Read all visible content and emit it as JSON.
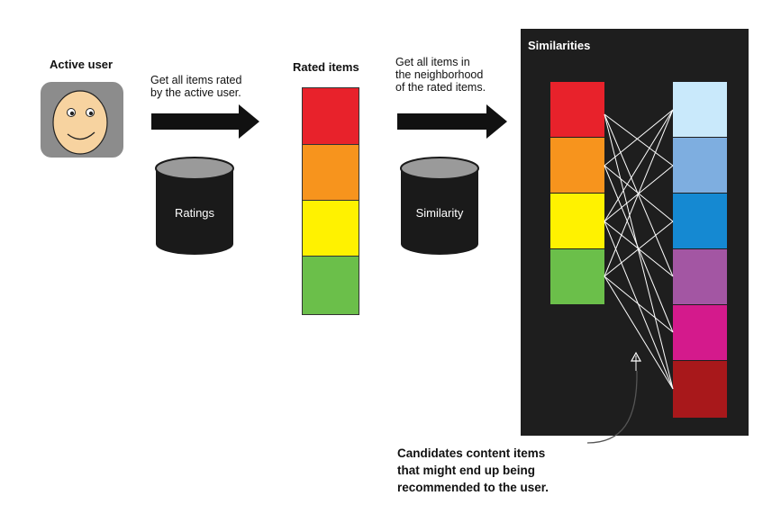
{
  "active_user": {
    "title": "Active user"
  },
  "step1": {
    "text_line1": "Get all items rated",
    "text_line2": "by the active user."
  },
  "ratings_db": {
    "label": "Ratings"
  },
  "rated_items": {
    "title": "Rated items",
    "colors": [
      "#e8222b",
      "#f7941d",
      "#fff200",
      "#6bbf4a"
    ]
  },
  "step2": {
    "text_line1": "Get all items in",
    "text_line2": "the neighborhood",
    "text_line3": "of the rated items."
  },
  "similarity_db": {
    "label": "Similarity"
  },
  "similarities": {
    "title": "Similarities",
    "left_colors": [
      "#e8222b",
      "#f7941d",
      "#fff200",
      "#6bbf4a"
    ],
    "right_colors": [
      "#c9e9fb",
      "#7eaee0",
      "#1589d2",
      "#a356a3",
      "#d41a8c",
      "#a8181b"
    ]
  },
  "caption": {
    "line1": "Candidates content items",
    "line2": "that might end up being",
    "line3": "recommended to the user."
  }
}
